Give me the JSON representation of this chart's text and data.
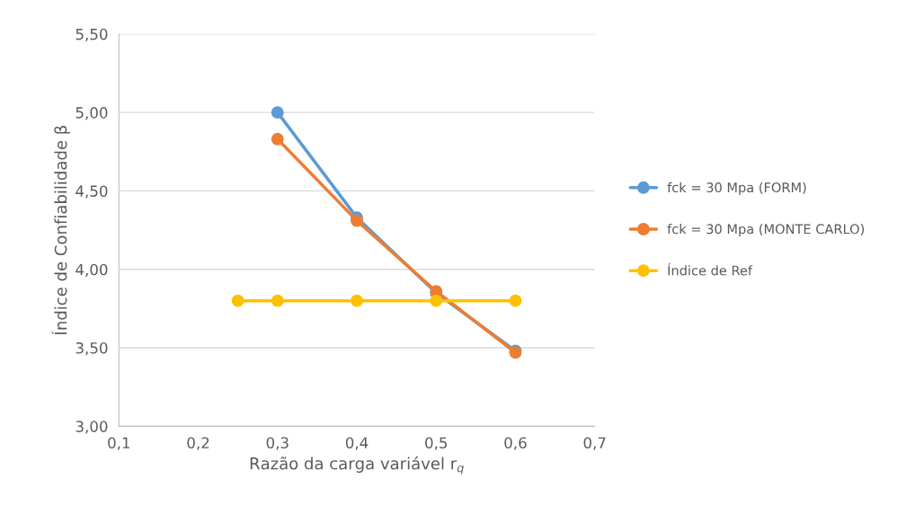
{
  "chart_data": {
    "type": "line",
    "xlabel": "Razão da carga variável r$_{q}$",
    "ylabel": "Índice de Confiabilidade β",
    "series": [
      {
        "name": "fck = 30 Mpa (FORM)",
        "color": "#5b9bd5",
        "x": [
          0.3,
          0.4,
          0.5,
          0.6
        ],
        "values": [
          5.0,
          4.33,
          3.85,
          3.48
        ]
      },
      {
        "name": "fck = 30 Mpa (MONTE CARLO)",
        "color": "#ed7d31",
        "x": [
          0.3,
          0.4,
          0.5,
          0.6
        ],
        "values": [
          4.83,
          4.31,
          3.86,
          3.47
        ]
      },
      {
        "name": "Índice de Ref",
        "color": "#ffc000",
        "x": [
          0.25,
          0.3,
          0.4,
          0.5,
          0.6
        ],
        "values": [
          3.8,
          3.8,
          3.8,
          3.8,
          3.8
        ]
      }
    ],
    "xlim": [
      0.1,
      0.7
    ],
    "ylim": [
      3.0,
      5.5
    ],
    "xticks": [
      {
        "value": 0.1,
        "label": "0,1"
      },
      {
        "value": 0.2,
        "label": "0,2"
      },
      {
        "value": 0.3,
        "label": "0,3"
      },
      {
        "value": 0.4,
        "label": "0,4"
      },
      {
        "value": 0.5,
        "label": "0,5"
      },
      {
        "value": 0.6,
        "label": "0,6"
      },
      {
        "value": 0.7,
        "label": "0,7"
      }
    ],
    "yticks": [
      {
        "value": 3.0,
        "label": "3,00"
      },
      {
        "value": 3.5,
        "label": "3,50"
      },
      {
        "value": 4.0,
        "label": "4,00"
      },
      {
        "value": 4.5,
        "label": "4,50"
      },
      {
        "value": 5.0,
        "label": "5,00"
      },
      {
        "value": 5.5,
        "label": "5,50"
      }
    ],
    "grid": "y",
    "legend": "right",
    "marker": "circle",
    "line_style": "solid"
  }
}
